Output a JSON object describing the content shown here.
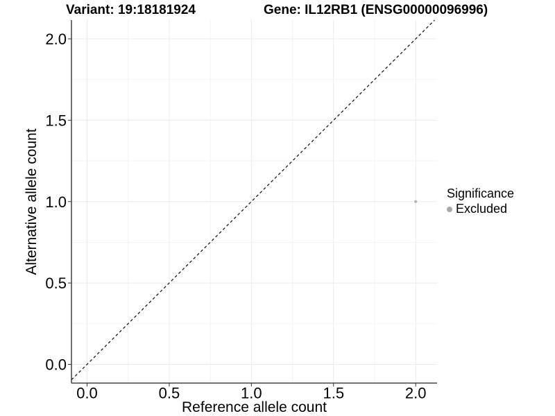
{
  "chart_data": {
    "type": "scatter",
    "titles": [
      "Variant: 19:18181924",
      "Gene: IL12RB1 (ENSG00000096996)"
    ],
    "xlabel": "Reference allele count",
    "ylabel": "Alternative allele count",
    "xlim": [
      -0.095,
      2.13
    ],
    "ylim": [
      -0.115,
      2.115
    ],
    "x_ticks": {
      "values": [
        0,
        0.5,
        1,
        1.5,
        2
      ],
      "labels": [
        "0.0",
        "0.5",
        "1.0",
        "1.5",
        "2.0"
      ]
    },
    "y_ticks": {
      "values": [
        0,
        0.5,
        1,
        1.5,
        2
      ],
      "labels": [
        "0.0",
        "0.5",
        "1.0",
        "1.5",
        "2.0"
      ]
    },
    "minor_gridlines": {
      "x": [
        0.25,
        0.75,
        1.25,
        1.75
      ],
      "y": [
        0.25,
        0.75,
        1.25,
        1.75
      ]
    },
    "grid": "major and minor, light gray on white panel",
    "identity_line": {
      "slope": 1,
      "intercept": 0,
      "style": "dashed",
      "color": "#1a1a1a"
    },
    "series": [
      {
        "name": "Excluded",
        "color": "#b4b4b4",
        "points": [
          {
            "x": 2.0,
            "y": 1.0
          }
        ]
      }
    ],
    "legend": {
      "title": "Significance",
      "position": "right",
      "items": [
        {
          "label": "Excluded",
          "color": "#a8a8a8",
          "marker": "circle"
        }
      ]
    }
  },
  "colors": {
    "background": "#ffffff",
    "grid_major": "#ebebeb",
    "grid_minor": "#f4f4f4",
    "axis_line": "#404040",
    "tick_mark": "#333333",
    "tick_label": "#000000",
    "point": "#b4b4b4"
  }
}
